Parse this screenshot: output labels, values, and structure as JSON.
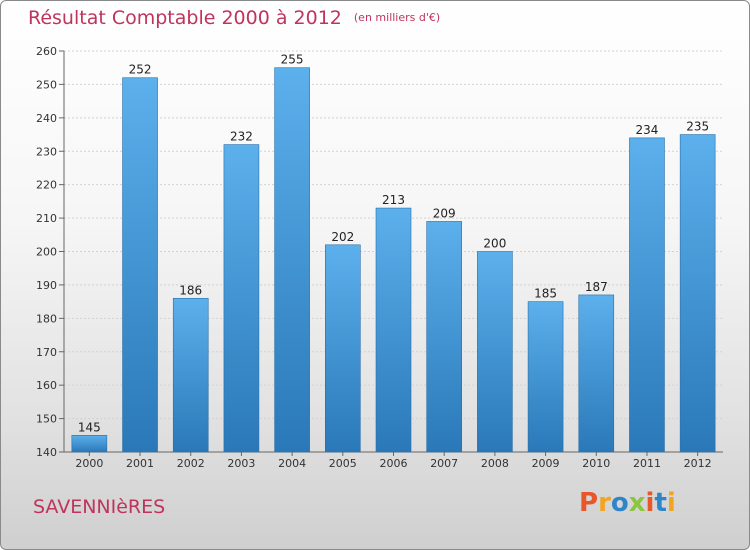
{
  "header": {
    "title": "Résultat Comptable 2000 à 2012",
    "unit": "(en milliers d'€)"
  },
  "footer": {
    "commune": "SAVENNIèRES",
    "logo_letters": [
      "P",
      "r",
      "o",
      "x",
      "i",
      "t",
      "i"
    ],
    "logo_colors": [
      "#e8562a",
      "#f2a51f",
      "#2e86c9",
      "#8cc63f",
      "#e8562a",
      "#2e86c9",
      "#f2a51f"
    ]
  },
  "colors": {
    "bar_light": "#5cb0ec",
    "bar_dark": "#2a78b8",
    "accent": "#c0335d"
  },
  "chart_data": {
    "type": "bar",
    "title": "Résultat Comptable 2000 à 2012",
    "ylabel": "(en milliers d'€)",
    "xlabel": "",
    "categories": [
      "2000",
      "2001",
      "2002",
      "2003",
      "2004",
      "2005",
      "2006",
      "2007",
      "2008",
      "2009",
      "2010",
      "2011",
      "2012"
    ],
    "values": [
      145,
      252,
      186,
      232,
      255,
      202,
      213,
      209,
      200,
      185,
      187,
      234,
      235
    ],
    "ylim": [
      140,
      260
    ],
    "yticks": [
      140,
      150,
      160,
      170,
      180,
      190,
      200,
      210,
      220,
      230,
      240,
      250,
      260
    ],
    "grid": true,
    "legend": "none"
  }
}
